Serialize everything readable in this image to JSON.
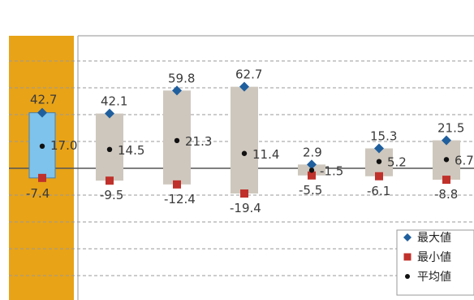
{
  "chart_data": {
    "type": "range",
    "legend": [
      {
        "key": "max",
        "label": "最大値",
        "color": "#1f5f9e",
        "marker": "diamond"
      },
      {
        "key": "min",
        "label": "最小値",
        "color": "#c0312b",
        "marker": "square"
      },
      {
        "key": "avg",
        "label": "平均値",
        "color": "#111111",
        "marker": "dot"
      }
    ],
    "legend_position": "bottom-right",
    "series": [
      {
        "max": 42.7,
        "min": -7.4,
        "avg": 17.0,
        "max_label": "42.7",
        "min_label": "-7.4",
        "avg_label": "17.0",
        "highlight": true
      },
      {
        "max": 42.1,
        "min": -9.5,
        "avg": 14.5,
        "max_label": "42.1",
        "min_label": "-9.5",
        "avg_label": "14.5"
      },
      {
        "max": 59.8,
        "min": -12.4,
        "avg": 21.3,
        "max_label": "59.8",
        "min_label": "-12.4",
        "avg_label": "21.3"
      },
      {
        "max": 62.7,
        "min": -19.4,
        "avg": 11.4,
        "max_label": "62.7",
        "min_label": "-19.4",
        "avg_label": "11.4"
      },
      {
        "max": 2.9,
        "min": -5.5,
        "avg": -1.5,
        "max_label": "2.9",
        "min_label": "-5.5",
        "avg_label": "-1.5"
      },
      {
        "max": 15.3,
        "min": -6.1,
        "avg": 5.2,
        "max_label": "15.3",
        "min_label": "-6.1",
        "avg_label": "5.2"
      },
      {
        "max": 21.5,
        "min": -8.8,
        "avg": 6.7,
        "max_label": "21.5",
        "min_label": "-8.8",
        "avg_label": "6.7"
      }
    ],
    "colors": {
      "highlight_panel": "#e8a317",
      "highlight_bar": "#7ec3ec",
      "bar": "#cec7bd",
      "grid": "#9a9a9a",
      "frame": "#a8a8a8",
      "zero_line": "#555555"
    }
  }
}
